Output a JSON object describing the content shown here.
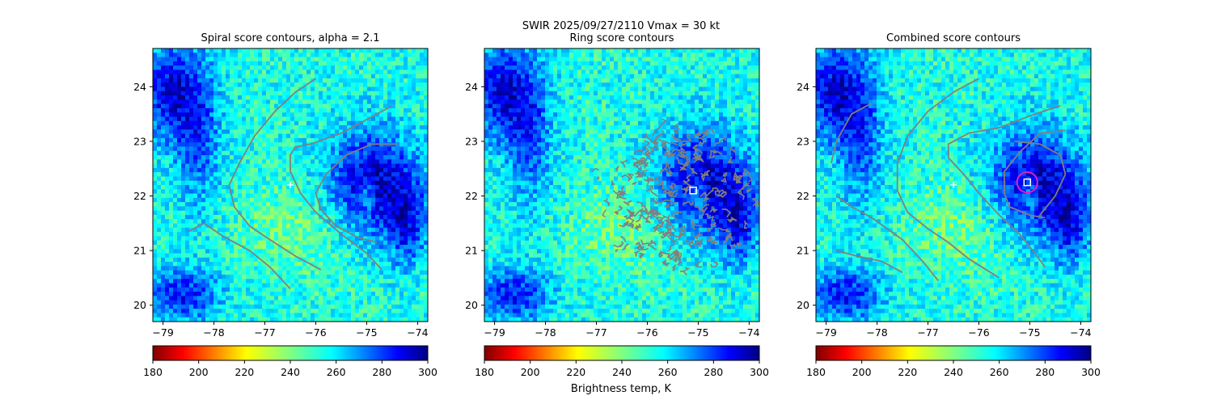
{
  "suptitle": {
    "line1": "SWIR  2025/09/27/2110    Vmax = 30 kt"
  },
  "colorbar_label": "Brightness temp, K",
  "colormap": "jet_r",
  "colors": {
    "warm_end": "#800000",
    "cold_end": "#000080",
    "contour": "#808080",
    "marker": "#ffffff",
    "ring_circle": "#e020c0"
  },
  "chart_data": [
    {
      "type": "heatmap",
      "title": "Spiral score contours, alpha =  2.1",
      "xlim": [
        -79.2,
        -73.8
      ],
      "ylim": [
        19.7,
        24.7
      ],
      "xticks": [
        -79,
        -78,
        -77,
        -76,
        -75,
        -74
      ],
      "yticks": [
        20,
        21,
        22,
        23,
        24
      ],
      "colorbar": {
        "min": 180,
        "max": 300,
        "ticks": [
          180,
          200,
          220,
          240,
          260,
          280,
          300
        ]
      },
      "marker": {
        "type": "plus",
        "x": -76.5,
        "y": 22.2
      },
      "contours": [
        [
          [
            -76.0,
            24.15
          ],
          [
            -76.4,
            23.9
          ],
          [
            -76.8,
            23.55
          ],
          [
            -77.2,
            23.1
          ],
          [
            -77.5,
            22.6
          ],
          [
            -77.7,
            22.2
          ],
          [
            -77.6,
            21.8
          ],
          [
            -77.3,
            21.45
          ],
          [
            -76.9,
            21.2
          ],
          [
            -76.4,
            20.9
          ],
          [
            -75.9,
            20.65
          ]
        ],
        [
          [
            -74.5,
            23.65
          ],
          [
            -74.9,
            23.45
          ],
          [
            -75.5,
            23.15
          ],
          [
            -76.1,
            22.95
          ],
          [
            -76.4,
            22.9
          ],
          [
            -76.5,
            22.75
          ],
          [
            -76.5,
            22.45
          ],
          [
            -76.3,
            22.05
          ],
          [
            -76.0,
            21.7
          ],
          [
            -75.5,
            21.3
          ],
          [
            -75.0,
            20.95
          ],
          [
            -74.7,
            20.65
          ]
        ],
        [
          [
            -74.4,
            22.95
          ],
          [
            -74.9,
            22.95
          ],
          [
            -75.4,
            22.75
          ],
          [
            -75.8,
            22.4
          ],
          [
            -76.0,
            22.05
          ],
          [
            -75.9,
            21.75
          ],
          [
            -75.6,
            21.45
          ],
          [
            -75.2,
            21.25
          ],
          [
            -74.8,
            21.15
          ]
        ],
        [
          [
            -78.5,
            21.35
          ],
          [
            -78.2,
            21.5
          ],
          [
            -77.8,
            21.25
          ],
          [
            -77.3,
            21.0
          ],
          [
            -76.9,
            20.7
          ],
          [
            -76.5,
            20.3
          ]
        ]
      ]
    },
    {
      "type": "heatmap",
      "title": "Ring score contours",
      "xlim": [
        -79.2,
        -73.8
      ],
      "ylim": [
        19.7,
        24.7
      ],
      "xticks": [
        -79,
        -78,
        -77,
        -76,
        -75,
        -74
      ],
      "yticks": [
        20,
        21,
        22,
        23,
        24
      ],
      "colorbar": {
        "min": 180,
        "max": 300,
        "ticks": [
          180,
          200,
          220,
          240,
          260,
          280,
          300
        ]
      },
      "marker": {
        "type": "square",
        "x": -75.1,
        "y": 22.1
      },
      "contours": [],
      "ring_region": {
        "cx": -75.3,
        "cy": 21.95,
        "rx": 1.35,
        "ry": 1.3
      }
    },
    {
      "type": "heatmap",
      "title": "Combined score contours",
      "xlim": [
        -79.2,
        -73.8
      ],
      "ylim": [
        19.7,
        24.7
      ],
      "xticks": [
        -79,
        -78,
        -77,
        -76,
        -75,
        -74
      ],
      "yticks": [
        20,
        21,
        22,
        23,
        24
      ],
      "colorbar": {
        "min": 180,
        "max": 300,
        "ticks": [
          180,
          200,
          220,
          240,
          260,
          280,
          300
        ]
      },
      "marker": {
        "type": "plus",
        "x": -76.5,
        "y": 22.2
      },
      "marker2": {
        "type": "square",
        "x": -75.05,
        "y": 22.25
      },
      "circle": {
        "x": -75.05,
        "y": 22.25,
        "r": 0.2
      },
      "contours": [
        [
          [
            -76.0,
            24.15
          ],
          [
            -76.5,
            23.9
          ],
          [
            -77.0,
            23.55
          ],
          [
            -77.4,
            23.1
          ],
          [
            -77.6,
            22.6
          ],
          [
            -77.6,
            22.1
          ],
          [
            -77.4,
            21.7
          ],
          [
            -77.0,
            21.4
          ],
          [
            -76.6,
            21.15
          ],
          [
            -76.2,
            20.85
          ],
          [
            -75.6,
            20.5
          ]
        ],
        [
          [
            -74.4,
            23.65
          ],
          [
            -74.9,
            23.5
          ],
          [
            -75.6,
            23.25
          ],
          [
            -76.2,
            23.15
          ],
          [
            -76.6,
            22.95
          ],
          [
            -76.6,
            22.7
          ],
          [
            -76.3,
            22.4
          ],
          [
            -76.0,
            22.05
          ],
          [
            -75.6,
            21.65
          ],
          [
            -75.2,
            21.3
          ],
          [
            -74.9,
            20.95
          ],
          [
            -74.7,
            20.7
          ]
        ],
        [
          [
            -74.3,
            23.2
          ],
          [
            -74.8,
            23.15
          ],
          [
            -75.2,
            22.8
          ],
          [
            -75.5,
            22.45
          ],
          [
            -75.5,
            22.05
          ],
          [
            -75.4,
            21.8
          ],
          [
            -75.0,
            21.65
          ],
          [
            -74.7,
            21.6
          ]
        ],
        [
          [
            -78.1,
            23.7
          ],
          [
            -78.5,
            23.5
          ],
          [
            -78.8,
            23.0
          ],
          [
            -78.9,
            22.6
          ]
        ],
        [
          [
            -78.8,
            22.0
          ],
          [
            -78.5,
            21.8
          ],
          [
            -78.1,
            21.6
          ],
          [
            -77.5,
            21.2
          ],
          [
            -77.1,
            20.8
          ],
          [
            -76.8,
            20.45
          ]
        ],
        [
          [
            -78.8,
            21.0
          ],
          [
            -78.4,
            20.9
          ],
          [
            -77.9,
            20.8
          ],
          [
            -77.5,
            20.6
          ]
        ],
        [
          [
            -75.3,
            23.0
          ],
          [
            -74.8,
            22.95
          ],
          [
            -74.4,
            22.75
          ],
          [
            -74.3,
            22.4
          ],
          [
            -74.5,
            22.0
          ],
          [
            -74.8,
            21.65
          ]
        ]
      ]
    }
  ]
}
